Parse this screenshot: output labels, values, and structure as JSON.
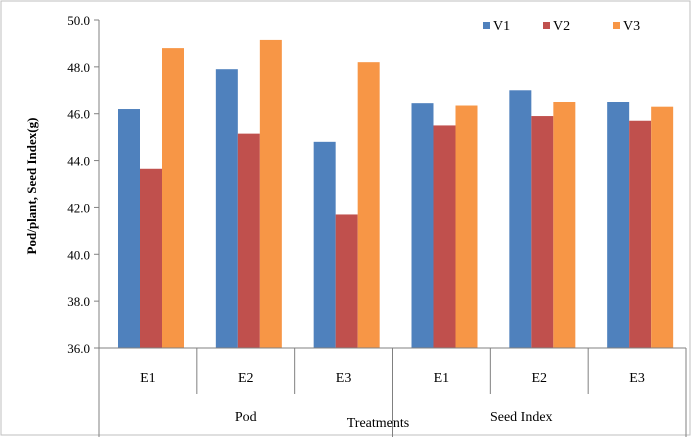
{
  "chart_data": {
    "type": "bar",
    "ylabel": "Pod/plant, Seed Index(g)",
    "xlabel": "Treatments",
    "ylim": [
      36.0,
      50.0
    ],
    "yticks": [
      "50.0",
      "48.0",
      "46.0",
      "44.0",
      "42.0",
      "40.0",
      "38.0",
      "36.0"
    ],
    "categories": [
      "E1",
      "E2",
      "E3",
      "E1",
      "E2",
      "E3"
    ],
    "groups": [
      {
        "label": "Pod",
        "span": [
          0,
          2
        ]
      },
      {
        "label": "Seed Index",
        "span": [
          3,
          5
        ]
      }
    ],
    "legend_position": "top-right",
    "grid": false,
    "series": [
      {
        "name": "V1",
        "color": "#4f81bd",
        "values": [
          46.2,
          47.9,
          44.8,
          46.45,
          47.0,
          46.5
        ]
      },
      {
        "name": "V2",
        "color": "#c0504d",
        "values": [
          43.65,
          45.15,
          41.7,
          45.5,
          45.9,
          45.7
        ]
      },
      {
        "name": "V3",
        "color": "#f79646",
        "values": [
          48.8,
          49.15,
          48.2,
          46.35,
          46.5,
          46.3
        ]
      }
    ]
  }
}
